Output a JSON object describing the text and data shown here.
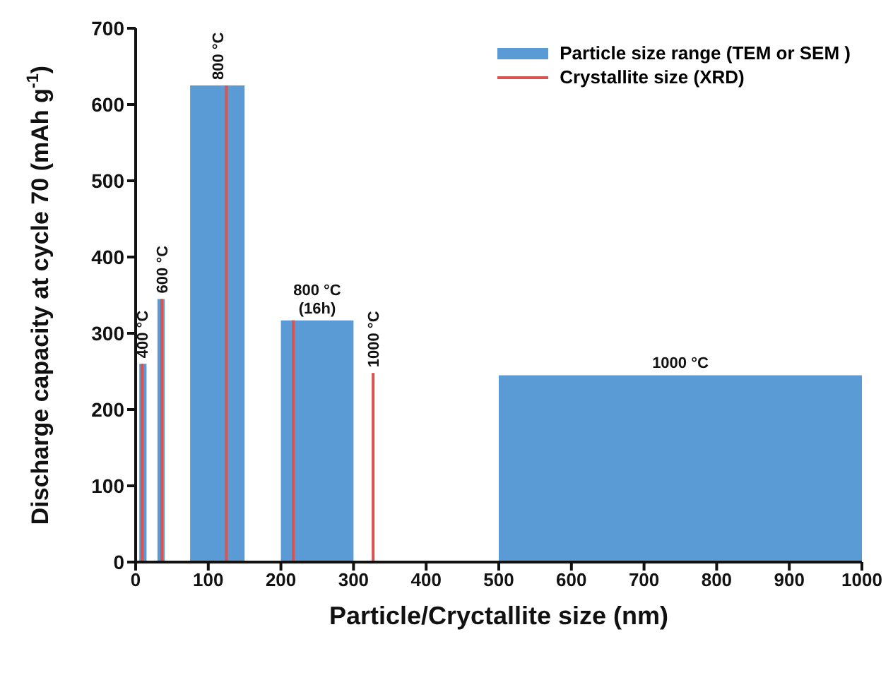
{
  "chart_data": {
    "type": "histogram",
    "xlabel": "Particle/Cryctallite size (nm)",
    "ylabel": "Discharge capacity at cycle 70 (mAh g$^{-1}$)",
    "xlim": [
      0,
      1000
    ],
    "xticks": [
      0,
      100,
      200,
      300,
      400,
      500,
      600,
      700,
      800,
      900,
      1000
    ],
    "ylim": [
      0,
      700
    ],
    "yticks": [
      0,
      100,
      200,
      300,
      400,
      500,
      600,
      700
    ],
    "legend": "top right",
    "grid": false,
    "series": [
      {
        "name": "Particle size range (TEM or SEM )",
        "color": "#5b9bd5",
        "bins": [
          5,
          15,
          30,
          40,
          75,
          150,
          200,
          300,
          500,
          1000
        ],
        "values": [
          260,
          null,
          345,
          null,
          625,
          null,
          317,
          null,
          245
        ]
      },
      {
        "type": "bar",
        "name": "Crystallite size (XRD)",
        "color": "#d9534f",
        "x": [
          9,
          36,
          125,
          217,
          327
        ],
        "values": [
          260,
          345,
          625,
          317,
          248
        ]
      }
    ],
    "annotations": [
      {
        "text": "400 °C",
        "x": 9,
        "y": 260
      },
      {
        "text": "600 °C",
        "x": 36,
        "y": 345
      },
      {
        "text": "800 °C",
        "x": 112.5,
        "y": 625
      },
      {
        "text": "800 °C\n(16h)",
        "x": 250,
        "y": 317
      },
      {
        "text": "1000 °C",
        "x": 327,
        "y": 248
      },
      {
        "text": "1000 °C",
        "x": 750,
        "y": 245
      }
    ]
  }
}
